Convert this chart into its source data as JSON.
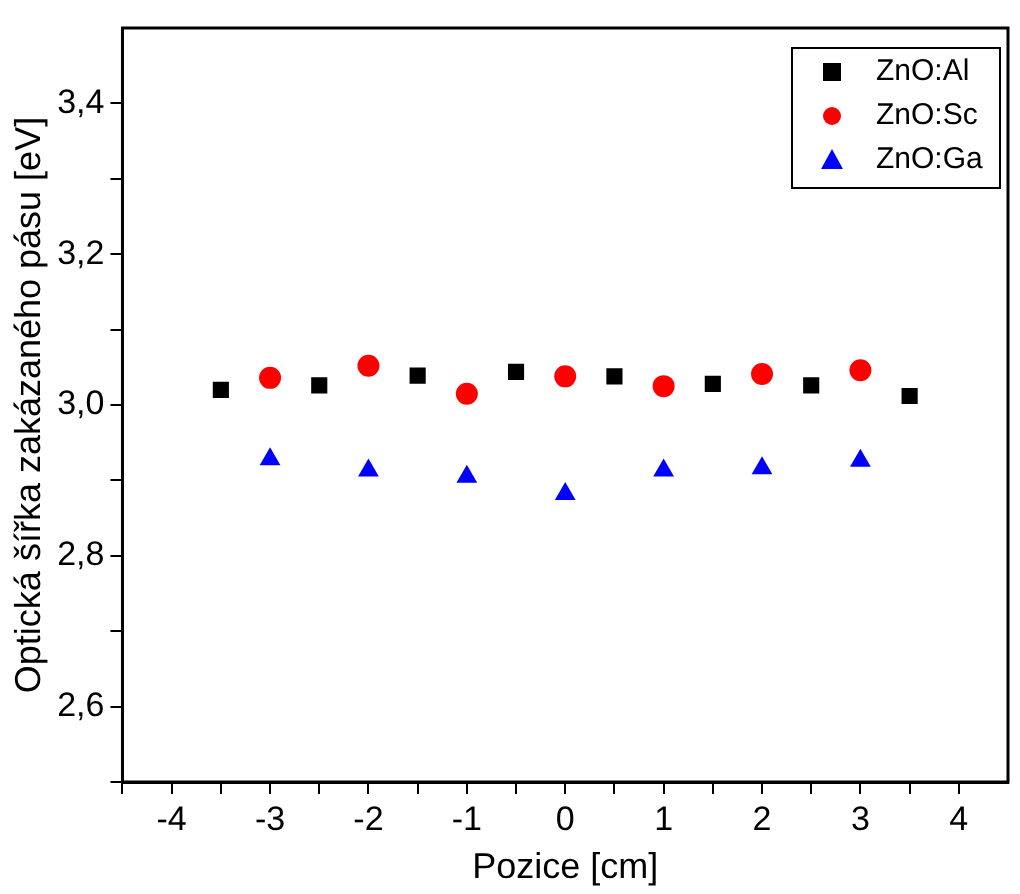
{
  "chart_data": {
    "type": "scatter",
    "xlabel": "Pozice [cm]",
    "ylabel": "Optická šířka zakázaného pásu [eV]",
    "xlim": [
      -4.5,
      4.5
    ],
    "ylim": [
      2.5,
      3.5
    ],
    "xticks": [
      {
        "value": -4.5,
        "label": null
      },
      -4,
      {
        "value": -3.5,
        "label": null
      },
      -3,
      {
        "value": -2.5,
        "label": null
      },
      -2,
      {
        "value": -1.5,
        "label": null
      },
      -1,
      {
        "value": -0.5,
        "label": null
      },
      0,
      {
        "value": 0.5,
        "label": null
      },
      1,
      {
        "value": 1.5,
        "label": null
      },
      2,
      {
        "value": 2.5,
        "label": null
      },
      3,
      {
        "value": 3.5,
        "label": null
      },
      4
    ],
    "yticks": [
      {
        "value": 2.5,
        "label": null
      },
      {
        "value": 2.6,
        "label": "2,6"
      },
      {
        "value": 2.7,
        "label": null
      },
      {
        "value": 2.8,
        "label": "2,8"
      },
      {
        "value": 2.9,
        "label": null
      },
      {
        "value": 3.0,
        "label": "3,0"
      },
      {
        "value": 3.1,
        "label": null
      },
      {
        "value": 3.2,
        "label": "3,2"
      },
      {
        "value": 3.3,
        "label": null
      },
      {
        "value": 3.4,
        "label": "3,4"
      }
    ],
    "grid": false,
    "legend": "top right",
    "series": [
      {
        "name": "ZnO:Al",
        "color": "#000000",
        "marker": "square",
        "x": [
          -3.5,
          -2.5,
          -1.5,
          -0.5,
          0.5,
          1.5,
          2.5,
          3.5
        ],
        "values": [
          3.02,
          3.026,
          3.039,
          3.044,
          3.038,
          3.028,
          3.026,
          3.012
        ]
      },
      {
        "name": "ZnO:Sc",
        "color": "#ff0000",
        "marker": "circle",
        "x": [
          -3,
          -2,
          -1,
          0,
          1,
          2,
          3
        ],
        "values": [
          3.036,
          3.052,
          3.015,
          3.038,
          3.025,
          3.041,
          3.046
        ]
      },
      {
        "name": "ZnO:Ga",
        "color": "#0000ff",
        "marker": "triangle",
        "x": [
          -3,
          -2,
          -1,
          0,
          1,
          2,
          3
        ],
        "values": [
          2.928,
          2.913,
          2.905,
          2.882,
          2.913,
          2.916,
          2.926
        ]
      }
    ]
  }
}
